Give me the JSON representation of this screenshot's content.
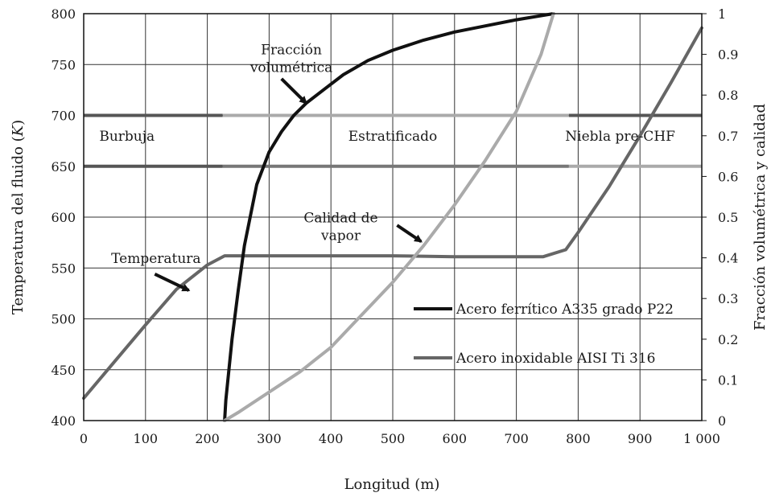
{
  "chart_data": {
    "type": "line",
    "xlabel": "Longitud (m)",
    "ylabel_left": "Temperatura del fluido (K)",
    "ylabel_left_text": "Temperatura del fluido (",
    "ylabel_left_unit": "K",
    "ylabel_left_close": ")",
    "ylabel_right": "Fracción volumétrica y calidad",
    "xlim": [
      0,
      1000
    ],
    "ylim_left": [
      400,
      800
    ],
    "ylim_right": [
      0,
      1
    ],
    "grid": true,
    "x_ticks": [
      0,
      100,
      200,
      300,
      400,
      500,
      600,
      700,
      800,
      900,
      1000
    ],
    "x_tick_labels": [
      "0",
      "100",
      "200",
      "300",
      "400",
      "500",
      "600",
      "700",
      "800",
      "900",
      "1 000"
    ],
    "y_left_ticks": [
      400,
      450,
      500,
      550,
      600,
      650,
      700,
      750,
      800
    ],
    "y_left_tick_labels": [
      "400",
      "450",
      "500",
      "550",
      "600",
      "650",
      "700",
      "750",
      "800"
    ],
    "y_right_ticks": [
      0,
      0.1,
      0.2,
      0.3,
      0.4,
      0.5,
      0.6,
      0.7,
      0.8,
      0.9,
      1
    ],
    "y_right_tick_labels": [
      "0",
      "0.1",
      "0.2",
      "0.3",
      "0.4",
      "0.5",
      "0.6",
      "0.7",
      "0.8",
      "0.9",
      "1"
    ],
    "series": [
      {
        "axis": "left",
        "color": "#666666",
        "x": [
          0,
          50,
          100,
          150,
          200,
          228,
          300,
          400,
          500,
          600,
          700,
          743,
          780,
          800,
          850,
          900,
          950,
          1000
        ],
        "y": [
          422,
          458,
          494,
          529,
          553,
          562,
          562,
          562,
          562,
          561,
          561,
          561,
          568,
          585,
          630,
          680,
          732,
          786
        ]
      },
      {
        "axis": "right",
        "color": "#111111",
        "x": [
          228,
          230,
          240,
          250,
          260,
          280,
          300,
          320,
          340,
          360,
          390,
          420,
          460,
          500,
          550,
          600,
          650,
          700,
          740,
          760
        ],
        "y": [
          0,
          0.05,
          0.2,
          0.32,
          0.43,
          0.58,
          0.66,
          0.71,
          0.75,
          0.78,
          0.815,
          0.85,
          0.885,
          0.91,
          0.935,
          0.955,
          0.97,
          0.985,
          0.995,
          1.0
        ]
      },
      {
        "axis": "right",
        "color": "#aaaaaa",
        "x": [
          228,
          250,
          300,
          350,
          375,
          400,
          450,
          500,
          550,
          600,
          650,
          700,
          740,
          760
        ],
        "y": [
          0,
          0.02,
          0.07,
          0.12,
          0.15,
          0.18,
          0.26,
          0.34,
          0.43,
          0.53,
          0.64,
          0.76,
          0.9,
          1.0
        ]
      }
    ],
    "horizontal_bands": [
      {
        "y": 700,
        "segments": [
          {
            "x0": 0,
            "x1": 225,
            "color": "#555555"
          },
          {
            "x0": 225,
            "x1": 785,
            "color": "#aaaaaa"
          },
          {
            "x0": 785,
            "x1": 1000,
            "color": "#555555"
          }
        ]
      },
      {
        "y": 650,
        "segments": [
          {
            "x0": 0,
            "x1": 225,
            "color": "#555555"
          },
          {
            "x0": 225,
            "x1": 785,
            "color": "#777777"
          },
          {
            "x0": 785,
            "x1": 1000,
            "color": "#aaaaaa"
          }
        ]
      }
    ],
    "regions": [
      {
        "label": "Burbuja",
        "x": 70,
        "y": 680
      },
      {
        "label": "Estratificado",
        "x": 500,
        "y": 680
      },
      {
        "label": "Niebla pre-CHF",
        "x": 868,
        "y": 680
      }
    ],
    "annotations": [
      {
        "lines": [
          "Fracción",
          "volumétrica"
        ],
        "x": 336,
        "y": 760,
        "arrow_from": [
          320,
          0.84
        ],
        "arrow_to": [
          360,
          0.78
        ]
      },
      {
        "lines": [
          "Calidad de",
          "vapor"
        ],
        "x": 416,
        "y": 595,
        "arrow_from": [
          507,
          0.48
        ],
        "arrow_to": [
          546,
          0.44
        ]
      },
      {
        "lines": [
          "Temperatura"
        ],
        "x": 117,
        "y": 555,
        "arrow_from": [
          115,
          0.36
        ],
        "arrow_to": [
          170,
          0.32
        ]
      }
    ],
    "legend": [
      {
        "label": "Acero ferrítico A335 grado P22",
        "color": "#111111"
      },
      {
        "label": "Acero inoxidable AISI Ti 316",
        "color": "#666666"
      }
    ],
    "legend_position": "lower-right"
  }
}
